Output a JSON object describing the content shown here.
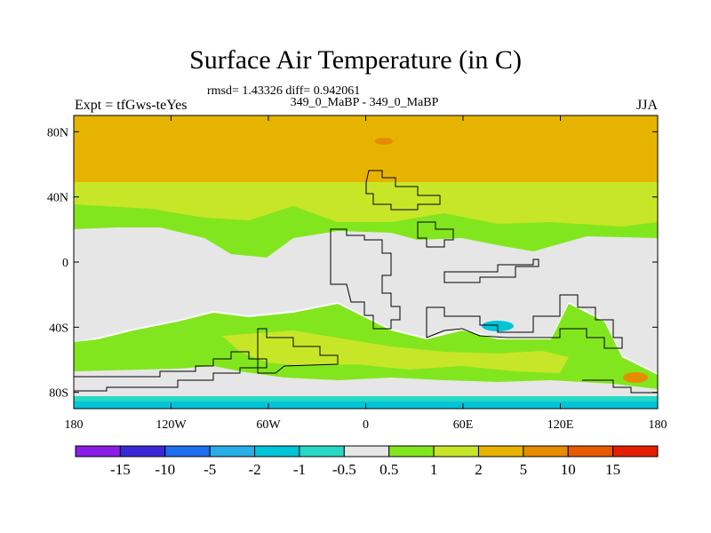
{
  "title": "Surface Air Temperature (in C)",
  "stats": "rmsd= 1.43326 diff= 0.942061",
  "left_label": "Expt = tfGws-teYes",
  "center_label": "349_0_MaBP - 349_0_MaBP",
  "right_label": "JJA",
  "colors": {
    "bins": [
      "#8a1ee6",
      "#3b28d8",
      "#1e6ef0",
      "#28aee6",
      "#00c4d8",
      "#28d8c4",
      "#e6e6e6",
      "#82e61e",
      "#c8e628",
      "#e6b400",
      "#e68c00",
      "#e65a00",
      "#e61e00"
    ],
    "land_outline": "#000000"
  },
  "chart_data": {
    "type": "heatmap",
    "projection": "cylindrical-equidistant",
    "x_range": [
      -180,
      180
    ],
    "y_range": [
      -90,
      90
    ],
    "x_ticks": [
      {
        "value": -180,
        "label": "180"
      },
      {
        "value": -120,
        "label": "120W"
      },
      {
        "value": -60,
        "label": "60W"
      },
      {
        "value": 0,
        "label": "0"
      },
      {
        "value": 60,
        "label": "60E"
      },
      {
        "value": 120,
        "label": "120E"
      },
      {
        "value": 180,
        "label": "180"
      }
    ],
    "y_ticks": [
      {
        "value": 80,
        "label": "80N"
      },
      {
        "value": 40,
        "label": "40N"
      },
      {
        "value": 0,
        "label": "0"
      },
      {
        "value": -40,
        "label": "40S"
      },
      {
        "value": -80,
        "label": "80S"
      }
    ],
    "colorbar_levels": [
      "-15",
      "-10",
      "-5",
      "-2",
      "-1",
      "-0.5",
      "0.5",
      "1",
      "2",
      "5",
      "10",
      "15"
    ],
    "fields": [
      {
        "region": "north polar band",
        "lat": [
          70,
          90
        ],
        "value_bin": "2 to 5"
      },
      {
        "region": "northern midlatitudes",
        "lat": [
          50,
          70
        ],
        "value_bin": "2 to 5"
      },
      {
        "region": "northern subtropics",
        "lat": [
          28,
          50
        ],
        "value_bin": "1 to 2"
      },
      {
        "region": "tropics",
        "lat": [
          -30,
          20
        ],
        "value_bin": "-0.5 to 0.5"
      },
      {
        "region": "southern midlatitudes",
        "lat": [
          -70,
          -30
        ],
        "value_bin": "0.5 to 1"
      },
      {
        "region": "south polar band",
        "lat": [
          -90,
          -78
        ],
        "value_bin": "-1 to -0.5"
      }
    ]
  }
}
